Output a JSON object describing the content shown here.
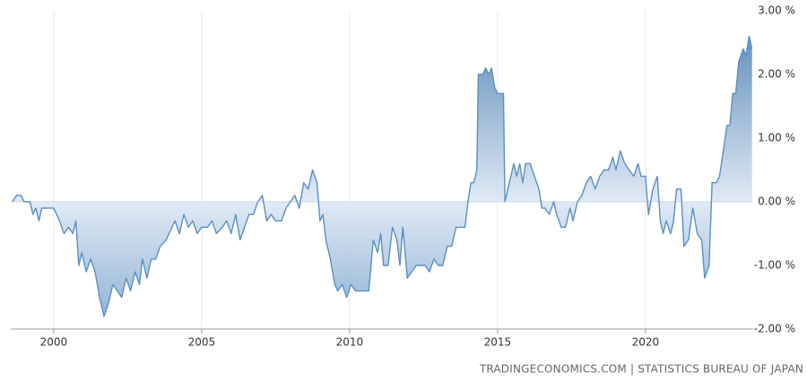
{
  "chart_data": {
    "type": "area",
    "source": "TRADINGECONOMICS.COM | STATISTICS BUREAU OF JAPAN",
    "xlim": [
      1998.55,
      2023.64
    ],
    "xticks": [
      2000,
      2005,
      2010,
      2015,
      2020
    ],
    "ylim": [
      -2,
      3
    ],
    "yticks": [
      {
        "value": -2,
        "label": "-2.00 %"
      },
      {
        "value": -1,
        "label": "-1.00 %"
      },
      {
        "value": 0,
        "label": "0.00 %"
      },
      {
        "value": 1,
        "label": "1.00 %"
      },
      {
        "value": 2,
        "label": "2.00 %"
      },
      {
        "value": 3,
        "label": "3.00 %"
      }
    ],
    "xgrid": true,
    "color": "#5b8fc2",
    "x": [
      1998.6,
      1998.75,
      1998.9,
      1999.0,
      1999.2,
      1999.3,
      1999.4,
      1999.5,
      1999.6,
      1999.8,
      2000.0,
      2000.2,
      2000.35,
      2000.5,
      2000.65,
      2000.75,
      2000.85,
      2000.95,
      2001.1,
      2001.25,
      2001.4,
      2001.55,
      2001.7,
      2001.85,
      2002.0,
      2002.15,
      2002.3,
      2002.45,
      2002.6,
      2002.75,
      2002.9,
      2003.0,
      2003.15,
      2003.3,
      2003.45,
      2003.6,
      2003.8,
      2004.0,
      2004.1,
      2004.25,
      2004.4,
      2004.55,
      2004.7,
      2004.85,
      2005.0,
      2005.2,
      2005.35,
      2005.5,
      2005.7,
      2005.85,
      2006.0,
      2006.15,
      2006.3,
      2006.45,
      2006.6,
      2006.75,
      2006.9,
      2007.05,
      2007.2,
      2007.35,
      2007.5,
      2007.7,
      2007.85,
      2008.0,
      2008.15,
      2008.3,
      2008.45,
      2008.6,
      2008.75,
      2008.9,
      2009.0,
      2009.1,
      2009.2,
      2009.35,
      2009.5,
      2009.6,
      2009.75,
      2009.9,
      2010.05,
      2010.2,
      2010.35,
      2010.5,
      2010.65,
      2010.8,
      2010.95,
      2011.05,
      2011.15,
      2011.3,
      2011.45,
      2011.6,
      2011.7,
      2011.8,
      2011.95,
      2012.1,
      2012.25,
      2012.4,
      2012.55,
      2012.7,
      2012.85,
      2013.0,
      2013.15,
      2013.3,
      2013.45,
      2013.6,
      2013.75,
      2013.9,
      2014.0,
      2014.1,
      2014.2,
      2014.3,
      2014.35,
      2014.5,
      2014.6,
      2014.7,
      2014.8,
      2014.9,
      2015.0,
      2015.1,
      2015.2,
      2015.25,
      2015.4,
      2015.55,
      2015.65,
      2015.75,
      2015.85,
      2015.95,
      2016.1,
      2016.25,
      2016.4,
      2016.5,
      2016.6,
      2016.75,
      2016.9,
      2017.0,
      2017.15,
      2017.3,
      2017.45,
      2017.55,
      2017.7,
      2017.85,
      2018.0,
      2018.15,
      2018.3,
      2018.45,
      2018.6,
      2018.75,
      2018.9,
      2019.0,
      2019.15,
      2019.3,
      2019.45,
      2019.6,
      2019.75,
      2019.85,
      2020.0,
      2020.1,
      2020.25,
      2020.4,
      2020.5,
      2020.6,
      2020.7,
      2020.85,
      2020.95,
      2021.05,
      2021.2,
      2021.3,
      2021.45,
      2021.6,
      2021.75,
      2021.9,
      2022.0,
      2022.15,
      2022.25,
      2022.4,
      2022.5,
      2022.6,
      2022.75,
      2022.85,
      2022.95,
      2023.05,
      2023.15,
      2023.3,
      2023.4,
      2023.5,
      2023.6
    ],
    "values": [
      0,
      0.1,
      0.1,
      0,
      0,
      -0.2,
      -0.1,
      -0.3,
      -0.1,
      -0.1,
      -0.1,
      -0.3,
      -0.5,
      -0.4,
      -0.5,
      -0.3,
      -1.0,
      -0.8,
      -1.1,
      -0.9,
      -1.1,
      -1.5,
      -1.8,
      -1.6,
      -1.3,
      -1.4,
      -1.5,
      -1.2,
      -1.4,
      -1.1,
      -1.3,
      -0.9,
      -1.2,
      -0.9,
      -0.9,
      -0.7,
      -0.6,
      -0.4,
      -0.3,
      -0.5,
      -0.2,
      -0.4,
      -0.3,
      -0.5,
      -0.4,
      -0.4,
      -0.3,
      -0.5,
      -0.4,
      -0.3,
      -0.5,
      -0.2,
      -0.6,
      -0.4,
      -0.2,
      -0.2,
      0,
      0.1,
      -0.3,
      -0.2,
      -0.3,
      -0.3,
      -0.1,
      0,
      0.1,
      -0.1,
      0.3,
      0.2,
      0.5,
      0.3,
      -0.3,
      -0.2,
      -0.6,
      -0.9,
      -1.3,
      -1.4,
      -1.3,
      -1.5,
      -1.3,
      -1.4,
      -1.4,
      -1.4,
      -1.4,
      -0.6,
      -0.8,
      -0.5,
      -1.0,
      -1.0,
      -0.4,
      -0.6,
      -1.0,
      -0.4,
      -1.2,
      -1.1,
      -1.0,
      -1.0,
      -1.0,
      -1.1,
      -0.9,
      -1.0,
      -1.0,
      -0.7,
      -0.7,
      -0.4,
      -0.4,
      -0.4,
      0,
      0.3,
      0.3,
      0.5,
      2.0,
      2.0,
      2.1,
      2.0,
      2.1,
      1.8,
      1.7,
      1.7,
      1.7,
      0,
      0.3,
      0.6,
      0.4,
      0.6,
      0.3,
      0.6,
      0.6,
      0.4,
      0.2,
      -0.1,
      -0.1,
      -0.2,
      0,
      -0.2,
      -0.4,
      -0.4,
      -0.1,
      -0.3,
      0,
      0.1,
      0.3,
      0.4,
      0.2,
      0.4,
      0.5,
      0.5,
      0.7,
      0.5,
      0.8,
      0.6,
      0.5,
      0.4,
      0.6,
      0.4,
      0.4,
      -0.2,
      0.2,
      0.4,
      -0.3,
      -0.5,
      -0.3,
      -0.5,
      -0.3,
      0.2,
      0.2,
      -0.7,
      -0.6,
      -0.1,
      -0.5,
      -0.6,
      -1.2,
      -1.0,
      0.3,
      0.3,
      0.4,
      0.7,
      1.2,
      1.2,
      1.7,
      1.7,
      2.2,
      2.4,
      2.3,
      2.6,
      2.4
    ]
  }
}
